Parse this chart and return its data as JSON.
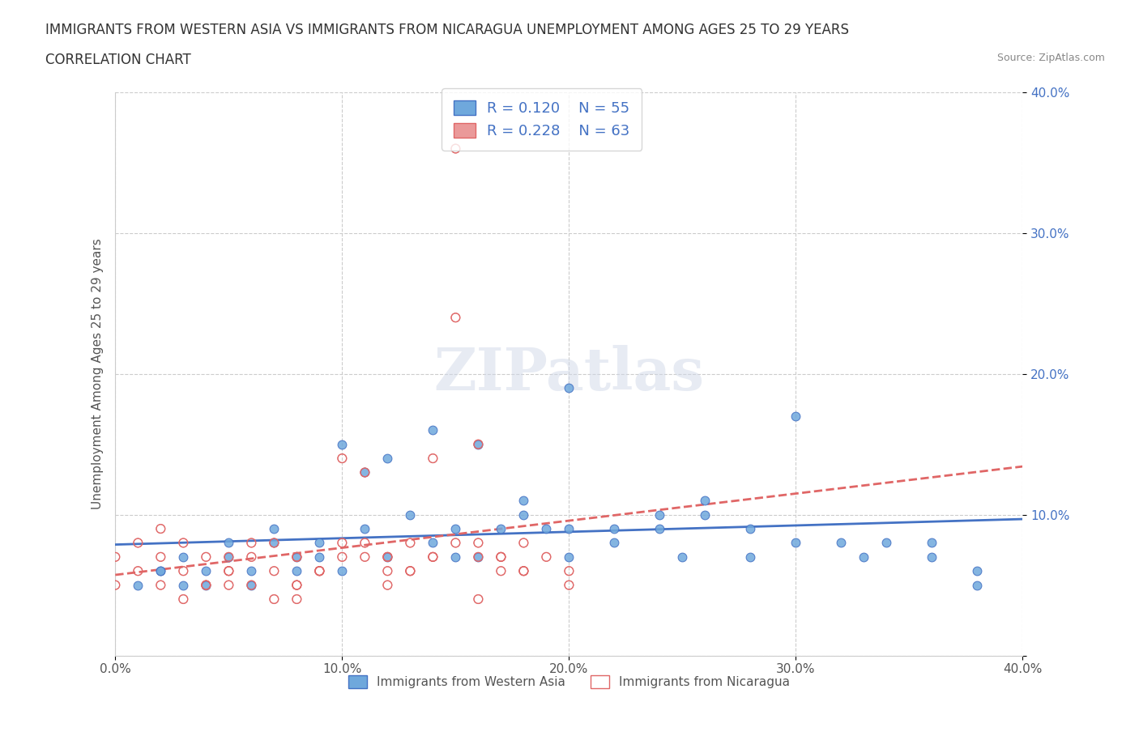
{
  "title_line1": "IMMIGRANTS FROM WESTERN ASIA VS IMMIGRANTS FROM NICARAGUA UNEMPLOYMENT AMONG AGES 25 TO 29 YEARS",
  "title_line2": "CORRELATION CHART",
  "source_text": "Source: ZipAtlas.com",
  "xlabel": "",
  "ylabel": "Unemployment Among Ages 25 to 29 years",
  "xlim": [
    0.0,
    0.4
  ],
  "ylim": [
    0.0,
    0.4
  ],
  "xticks": [
    0.0,
    0.1,
    0.2,
    0.3,
    0.4
  ],
  "yticks": [
    0.0,
    0.1,
    0.2,
    0.3,
    0.4
  ],
  "xticklabels": [
    "0.0%",
    "10.0%",
    "20.0%",
    "30.0%",
    "40.0%"
  ],
  "yticklabels": [
    "",
    "10.0%",
    "20.0%",
    "30.0%",
    "40.0%"
  ],
  "blue_color": "#6fa8dc",
  "pink_color": "#ea9999",
  "blue_line_color": "#4472c4",
  "pink_line_color": "#e06666",
  "watermark_color": "#c0c0c0",
  "legend_R_blue": "R = 0.120",
  "legend_N_blue": "N = 55",
  "legend_R_pink": "R = 0.228",
  "legend_N_pink": "N = 63",
  "series1_label": "Immigrants from Western Asia",
  "series2_label": "Immigrants from Nicaragua",
  "blue_x": [
    0.02,
    0.03,
    0.04,
    0.05,
    0.06,
    0.07,
    0.08,
    0.09,
    0.1,
    0.11,
    0.12,
    0.13,
    0.14,
    0.15,
    0.16,
    0.17,
    0.18,
    0.19,
    0.2,
    0.22,
    0.24,
    0.26,
    0.28,
    0.3,
    0.32,
    0.34,
    0.36,
    0.38,
    0.01,
    0.02,
    0.03,
    0.04,
    0.05,
    0.06,
    0.07,
    0.08,
    0.09,
    0.1,
    0.11,
    0.12,
    0.14,
    0.16,
    0.18,
    0.2,
    0.22,
    0.24,
    0.26,
    0.28,
    0.3,
    0.33,
    0.36,
    0.38,
    0.25,
    0.2,
    0.15
  ],
  "blue_y": [
    0.06,
    0.07,
    0.05,
    0.08,
    0.06,
    0.09,
    0.07,
    0.08,
    0.06,
    0.09,
    0.07,
    0.1,
    0.08,
    0.09,
    0.07,
    0.09,
    0.1,
    0.09,
    0.19,
    0.09,
    0.1,
    0.11,
    0.09,
    0.17,
    0.08,
    0.08,
    0.07,
    0.06,
    0.05,
    0.06,
    0.05,
    0.06,
    0.07,
    0.05,
    0.08,
    0.06,
    0.07,
    0.15,
    0.13,
    0.14,
    0.16,
    0.15,
    0.11,
    0.09,
    0.08,
    0.09,
    0.1,
    0.07,
    0.08,
    0.07,
    0.08,
    0.05,
    0.07,
    0.07,
    0.07
  ],
  "pink_x": [
    0.0,
    0.01,
    0.02,
    0.03,
    0.04,
    0.05,
    0.06,
    0.07,
    0.08,
    0.09,
    0.1,
    0.11,
    0.12,
    0.13,
    0.14,
    0.15,
    0.16,
    0.17,
    0.18,
    0.0,
    0.01,
    0.02,
    0.03,
    0.04,
    0.05,
    0.06,
    0.07,
    0.08,
    0.09,
    0.1,
    0.11,
    0.12,
    0.13,
    0.14,
    0.15,
    0.16,
    0.17,
    0.18,
    0.19,
    0.2,
    0.02,
    0.03,
    0.04,
    0.05,
    0.06,
    0.07,
    0.08,
    0.09,
    0.1,
    0.11,
    0.12,
    0.13,
    0.14,
    0.15,
    0.16,
    0.17,
    0.18,
    0.08,
    0.12,
    0.16,
    0.2,
    0.05,
    0.08
  ],
  "pink_y": [
    0.07,
    0.08,
    0.09,
    0.08,
    0.07,
    0.06,
    0.07,
    0.08,
    0.07,
    0.06,
    0.07,
    0.08,
    0.07,
    0.06,
    0.14,
    0.24,
    0.08,
    0.07,
    0.06,
    0.05,
    0.06,
    0.07,
    0.06,
    0.05,
    0.07,
    0.08,
    0.06,
    0.07,
    0.06,
    0.08,
    0.07,
    0.06,
    0.08,
    0.07,
    0.36,
    0.07,
    0.06,
    0.08,
    0.07,
    0.06,
    0.05,
    0.04,
    0.05,
    0.06,
    0.05,
    0.04,
    0.05,
    0.06,
    0.14,
    0.13,
    0.07,
    0.06,
    0.07,
    0.08,
    0.15,
    0.07,
    0.06,
    0.04,
    0.05,
    0.04,
    0.05,
    0.05,
    0.05
  ]
}
